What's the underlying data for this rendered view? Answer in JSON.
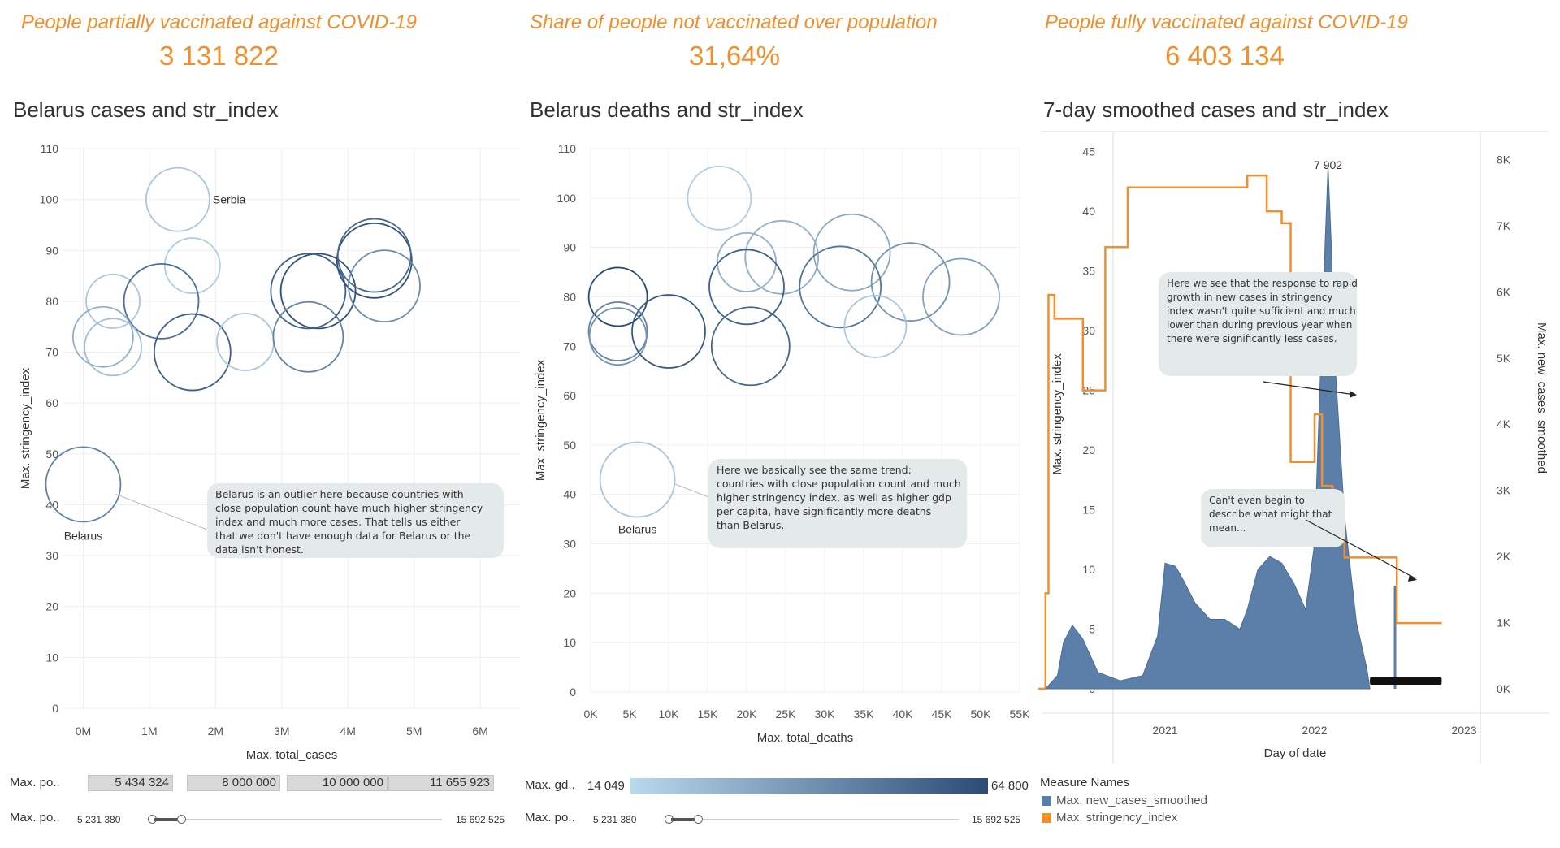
{
  "kpis": [
    {
      "title": "People partially vaccinated against COVID-19",
      "value": "3 131 822"
    },
    {
      "title": "Share of people not vaccinated over population",
      "value": "31,64%"
    },
    {
      "title": "People fully vaccinated against COVID-19",
      "value": "6 403 134"
    }
  ],
  "colors": {
    "orange": "#f28e2b",
    "blue": "#5b7fa8",
    "annotation_bg": "#e4e9ea"
  },
  "chart_data": [
    {
      "type": "scatter",
      "title": "Belarus cases and str_index",
      "xlabel": "Max. total_cases",
      "ylabel": "Max. stringency_index",
      "xlim": [
        -0.3,
        6.6
      ],
      "ylim": [
        0,
        110
      ],
      "xticks": [
        "0M",
        "1M",
        "2M",
        "3M",
        "4M",
        "5M",
        "6M"
      ],
      "yticks": [
        "0",
        "10",
        "20",
        "30",
        "40",
        "50",
        "60",
        "70",
        "80",
        "90",
        "100",
        "110"
      ],
      "points": [
        {
          "x": 1.43,
          "y": 100,
          "r": 39,
          "shade": 0.15,
          "label": "Serbia"
        },
        {
          "x": 1.65,
          "y": 87,
          "r": 34,
          "shade": 0.1
        },
        {
          "x": 0.45,
          "y": 80,
          "r": 33,
          "shade": 0.15
        },
        {
          "x": 1.18,
          "y": 80,
          "r": 46,
          "shade": 0.75
        },
        {
          "x": 0.3,
          "y": 73,
          "r": 37,
          "shade": 0.3
        },
        {
          "x": 0.45,
          "y": 71,
          "r": 35,
          "shade": 0.2
        },
        {
          "x": 1.65,
          "y": 70,
          "r": 47,
          "shade": 0.85
        },
        {
          "x": 2.45,
          "y": 72,
          "r": 35,
          "shade": 0.15
        },
        {
          "x": 3.55,
          "y": 82,
          "r": 46,
          "shade": 0.95
        },
        {
          "x": 3.4,
          "y": 82,
          "r": 46,
          "shade": 0.85
        },
        {
          "x": 3.4,
          "y": 73,
          "r": 43,
          "shade": 0.6
        },
        {
          "x": 4.4,
          "y": 88,
          "r": 46,
          "shade": 0.95
        },
        {
          "x": 4.4,
          "y": 89,
          "r": 45,
          "shade": 0.8
        },
        {
          "x": 4.55,
          "y": 83,
          "r": 44,
          "shade": 0.55
        },
        {
          "x": 0,
          "y": 44,
          "r": 46,
          "shade": 0.6,
          "label": "Belarus"
        }
      ],
      "annotation": "Belarus is an outlier here because countries with close population count have much higher stringency index and much more cases. That tells us either that we don't have enough data for Belarus or the data isn't honest."
    },
    {
      "type": "scatter",
      "title": "Belarus deaths and str_index",
      "xlabel": "Max. total_deaths",
      "ylabel": "Max. stringency_index",
      "xlim": [
        0,
        55000
      ],
      "ylim": [
        0,
        110
      ],
      "xticks": [
        "0K",
        "5K",
        "10K",
        "15K",
        "20K",
        "25K",
        "30K",
        "35K",
        "40K",
        "45K",
        "50K",
        "55K"
      ],
      "yticks": [
        "0",
        "10",
        "20",
        "30",
        "40",
        "50",
        "60",
        "70",
        "80",
        "90",
        "100",
        "110"
      ],
      "points": [
        {
          "x": 16500,
          "y": 100,
          "r": 39,
          "shade": 0.1
        },
        {
          "x": 20000,
          "y": 87,
          "r": 36,
          "shade": 0.3
        },
        {
          "x": 24500,
          "y": 88,
          "r": 45,
          "shade": 0.3
        },
        {
          "x": 33500,
          "y": 89,
          "r": 47,
          "shade": 0.35
        },
        {
          "x": 32000,
          "y": 82,
          "r": 50,
          "shade": 0.7
        },
        {
          "x": 41000,
          "y": 83,
          "r": 48,
          "shade": 0.5
        },
        {
          "x": 47500,
          "y": 80,
          "r": 47,
          "shade": 0.4
        },
        {
          "x": 36500,
          "y": 74,
          "r": 38,
          "shade": 0.15
        },
        {
          "x": 20000,
          "y": 82,
          "r": 46,
          "shade": 0.85
        },
        {
          "x": 20500,
          "y": 70,
          "r": 48,
          "shade": 0.8
        },
        {
          "x": 3500,
          "y": 80,
          "r": 36,
          "shade": 1.0
        },
        {
          "x": 3500,
          "y": 73,
          "r": 36,
          "shade": 0.6
        },
        {
          "x": 3500,
          "y": 72,
          "r": 35,
          "shade": 0.5
        },
        {
          "x": 10000,
          "y": 73,
          "r": 45,
          "shade": 0.9
        },
        {
          "x": 6000,
          "y": 43,
          "r": 46,
          "shade": 0.15,
          "label": "Belarus"
        }
      ],
      "annotation": "Here we basically see the same trend: countries with close population count and much higher stringency index, as well as higher gdp per capita, have significantly more deaths than Belarus."
    },
    {
      "type": "area",
      "title": "7-day smoothed cases and str_index",
      "xlabel": "Day of date",
      "ylabel_left": "Max. stringency_index",
      "ylabel_right": "Max. new_cases_smoothed",
      "xticks": [
        "2021",
        "2022",
        "2023"
      ],
      "yticks_left": [
        "0",
        "5",
        "10",
        "15",
        "20",
        "25",
        "30",
        "35",
        "40",
        "45"
      ],
      "yticks_right": [
        "0K",
        "1K",
        "2K",
        "3K",
        "4K",
        "5K",
        "6K",
        "7K",
        "8K"
      ],
      "peak_label": "7 902",
      "series": [
        {
          "name": "Max. new_cases_smoothed",
          "x": [
            2020.2,
            2020.28,
            2020.32,
            2020.38,
            2020.45,
            2020.55,
            2020.7,
            2020.85,
            2020.95,
            2021.0,
            2021.07,
            2021.12,
            2021.2,
            2021.3,
            2021.4,
            2021.5,
            2021.55,
            2021.62,
            2021.7,
            2021.78,
            2021.86,
            2021.94,
            2022.0,
            2022.05,
            2022.09,
            2022.11,
            2022.14,
            2022.2,
            2022.28,
            2022.35,
            2022.37
          ],
          "values": [
            0,
            200,
            700,
            960,
            750,
            250,
            120,
            200,
            800,
            1900,
            1850,
            1650,
            1300,
            1050,
            1050,
            900,
            1200,
            1800,
            2000,
            1900,
            1600,
            1200,
            2200,
            5500,
            7900,
            6800,
            4800,
            2600,
            1000,
            300,
            0
          ]
        },
        {
          "name": "Max. stringency_index",
          "x": [
            2020.15,
            2020.2,
            2020.2,
            2020.22,
            2020.22,
            2020.26,
            2020.26,
            2020.45,
            2020.45,
            2020.6,
            2020.6,
            2020.75,
            2020.75,
            2020.98,
            2020.98,
            2021.55,
            2021.55,
            2021.68,
            2021.68,
            2021.78,
            2021.78,
            2021.84,
            2021.84,
            2022.0,
            2022.0,
            2022.05,
            2022.05,
            2022.12,
            2022.12,
            2022.2,
            2022.2,
            2022.36,
            2022.36,
            2022.55,
            2022.55,
            2022.85
          ],
          "values": [
            0,
            0,
            8,
            8,
            33,
            33,
            31,
            31,
            25,
            25,
            37,
            37,
            42,
            42,
            42,
            42,
            43,
            43,
            40,
            40,
            39,
            39,
            19,
            19,
            23,
            23,
            17,
            17,
            14,
            14,
            11,
            11,
            11,
            11,
            5.5,
            5.5
          ]
        }
      ],
      "annotations": [
        "Here we see that the response to rapid growth in new cases in stringency index wasn't quite sufficient and much lower than during previous year when there were significantly less cases.",
        "Can't even begin to describe what might that mean..."
      ]
    }
  ],
  "filters": {
    "pop_label": "Max. po..",
    "pop_pills": [
      "5 434 324",
      "8 000 000",
      "10 000 000",
      "11 655 923"
    ],
    "gdp_label": "Max. gd..",
    "gdp_min": "14 049",
    "gdp_max": "64 800",
    "slider1_label": "Max. po..",
    "slider1_min": "5 231 380",
    "slider1_max": "15 692 525",
    "slider2_label": "Max. po..",
    "slider2_min": "5 231 380",
    "slider2_max": "15 692 525"
  },
  "legend": {
    "title": "Measure Names",
    "items": [
      {
        "label": "Max. new_cases_smoothed",
        "color": "#5b7fa8"
      },
      {
        "label": "Max. stringency_index",
        "color": "#f28e2b"
      }
    ]
  }
}
